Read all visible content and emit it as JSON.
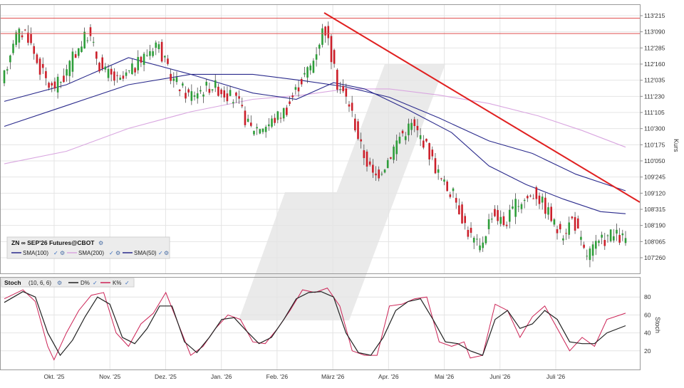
{
  "chart_data": {
    "type": "candlestick",
    "instrument_label": "ZN ∞ SEP'26 Futures@CBOT",
    "price_axis_label": "Kurs",
    "price_ticks": [
      "113'215",
      "113'090",
      "112'285",
      "112'160",
      "112'035",
      "111'230",
      "111'105",
      "110'300",
      "110'175",
      "110'050",
      "109'245",
      "109'120",
      "108'315",
      "108'190",
      "108'065",
      "107'260"
    ],
    "x_ticks": [
      "Okt. '25",
      "Nov. '25",
      "Dez. '25",
      "Jan. '26",
      "Feb. '26",
      "März '26",
      "Apr. '26",
      "Mai '26",
      "Juni '26",
      "Juli '26"
    ],
    "legend": [
      {
        "name": "SMA(100)",
        "color": "#2a2a8c"
      },
      {
        "name": "SMA(200)",
        "color": "#d9a6e0"
      },
      {
        "name": "SMA(50)",
        "color": "#2a2a8c"
      }
    ],
    "colors": {
      "up": "#2e9e3a",
      "down": "#cc1f2a",
      "trend": "#e02020",
      "level": "#e05050",
      "d_line": "#222222",
      "k_line": "#cc2255"
    },
    "levels": [
      113.65,
      113.28
    ],
    "trendline": [
      [
        0.0,
        113.8
      ],
      [
        1.0,
        108.92
      ]
    ],
    "price_range": [
      107.55,
      113.95
    ],
    "price_points": [
      {
        "t": 0.0,
        "p": 111.95
      },
      {
        "t": 0.02,
        "p": 113.2
      },
      {
        "t": 0.04,
        "p": 113.35
      },
      {
        "t": 0.06,
        "p": 112.5
      },
      {
        "t": 0.08,
        "p": 111.95
      },
      {
        "t": 0.1,
        "p": 112.2
      },
      {
        "t": 0.12,
        "p": 112.85
      },
      {
        "t": 0.14,
        "p": 113.3
      },
      {
        "t": 0.16,
        "p": 112.45
      },
      {
        "t": 0.19,
        "p": 112.1
      },
      {
        "t": 0.22,
        "p": 112.55
      },
      {
        "t": 0.25,
        "p": 113.1
      },
      {
        "t": 0.27,
        "p": 112.3
      },
      {
        "t": 0.3,
        "p": 111.8
      },
      {
        "t": 0.34,
        "p": 112.05
      },
      {
        "t": 0.38,
        "p": 111.65
      },
      {
        "t": 0.4,
        "p": 111.0
      },
      {
        "t": 0.43,
        "p": 111.1
      },
      {
        "t": 0.46,
        "p": 111.5
      },
      {
        "t": 0.48,
        "p": 112.1
      },
      {
        "t": 0.5,
        "p": 112.55
      },
      {
        "t": 0.52,
        "p": 113.5
      },
      {
        "t": 0.54,
        "p": 112.1
      },
      {
        "t": 0.56,
        "p": 111.6
      },
      {
        "t": 0.58,
        "p": 110.5
      },
      {
        "t": 0.6,
        "p": 109.8
      },
      {
        "t": 0.62,
        "p": 110.2
      },
      {
        "t": 0.64,
        "p": 110.8
      },
      {
        "t": 0.66,
        "p": 111.1
      },
      {
        "t": 0.68,
        "p": 110.7
      },
      {
        "t": 0.71,
        "p": 109.7
      },
      {
        "t": 0.73,
        "p": 109.35
      },
      {
        "t": 0.75,
        "p": 108.55
      },
      {
        "t": 0.77,
        "p": 108.1
      },
      {
        "t": 0.79,
        "p": 109.0
      },
      {
        "t": 0.81,
        "p": 108.7
      },
      {
        "t": 0.83,
        "p": 109.2
      },
      {
        "t": 0.86,
        "p": 109.45
      },
      {
        "t": 0.88,
        "p": 109.0
      },
      {
        "t": 0.9,
        "p": 108.4
      },
      {
        "t": 0.92,
        "p": 108.85
      },
      {
        "t": 0.94,
        "p": 107.95
      },
      {
        "t": 0.96,
        "p": 108.2
      },
      {
        "t": 0.98,
        "p": 108.45
      },
      {
        "t": 1.0,
        "p": 108.35
      }
    ],
    "sma50": [
      {
        "t": 0.0,
        "p": 111.65
      },
      {
        "t": 0.1,
        "p": 112.05
      },
      {
        "t": 0.2,
        "p": 112.7
      },
      {
        "t": 0.3,
        "p": 112.3
      },
      {
        "t": 0.4,
        "p": 111.85
      },
      {
        "t": 0.47,
        "p": 111.7
      },
      {
        "t": 0.53,
        "p": 112.1
      },
      {
        "t": 0.58,
        "p": 111.95
      },
      {
        "t": 0.65,
        "p": 111.45
      },
      {
        "t": 0.72,
        "p": 110.9
      },
      {
        "t": 0.78,
        "p": 110.1
      },
      {
        "t": 0.84,
        "p": 109.65
      },
      {
        "t": 0.9,
        "p": 109.3
      },
      {
        "t": 0.96,
        "p": 109.0
      },
      {
        "t": 1.0,
        "p": 108.95
      }
    ],
    "sma100": [
      {
        "t": 0.0,
        "p": 111.05
      },
      {
        "t": 0.1,
        "p": 111.55
      },
      {
        "t": 0.2,
        "p": 112.05
      },
      {
        "t": 0.3,
        "p": 112.3
      },
      {
        "t": 0.4,
        "p": 112.3
      },
      {
        "t": 0.48,
        "p": 112.15
      },
      {
        "t": 0.55,
        "p": 112.0
      },
      {
        "t": 0.62,
        "p": 111.75
      },
      {
        "t": 0.7,
        "p": 111.25
      },
      {
        "t": 0.78,
        "p": 110.7
      },
      {
        "t": 0.85,
        "p": 110.4
      },
      {
        "t": 0.92,
        "p": 109.9
      },
      {
        "t": 1.0,
        "p": 109.5
      }
    ],
    "sma200": [
      {
        "t": 0.0,
        "p": 110.15
      },
      {
        "t": 0.1,
        "p": 110.45
      },
      {
        "t": 0.2,
        "p": 111.0
      },
      {
        "t": 0.3,
        "p": 111.4
      },
      {
        "t": 0.4,
        "p": 111.7
      },
      {
        "t": 0.48,
        "p": 111.8
      },
      {
        "t": 0.55,
        "p": 111.95
      },
      {
        "t": 0.62,
        "p": 111.95
      },
      {
        "t": 0.7,
        "p": 111.8
      },
      {
        "t": 0.78,
        "p": 111.6
      },
      {
        "t": 0.86,
        "p": 111.3
      },
      {
        "t": 0.93,
        "p": 110.95
      },
      {
        "t": 1.0,
        "p": 110.55
      }
    ],
    "stoch": {
      "label": "Stoch",
      "params": "(10, 6, 6)",
      "d_label": "D%",
      "k_label": "K%",
      "axis_label": "Stoch",
      "ticks": [
        80,
        60,
        40,
        20
      ],
      "range": [
        0,
        100
      ],
      "k": [
        {
          "t": 0.0,
          "v": 78
        },
        {
          "t": 0.03,
          "v": 88
        },
        {
          "t": 0.05,
          "v": 75
        },
        {
          "t": 0.07,
          "v": 25
        },
        {
          "t": 0.08,
          "v": 10
        },
        {
          "t": 0.1,
          "v": 40
        },
        {
          "t": 0.12,
          "v": 65
        },
        {
          "t": 0.14,
          "v": 82
        },
        {
          "t": 0.16,
          "v": 85
        },
        {
          "t": 0.18,
          "v": 40
        },
        {
          "t": 0.2,
          "v": 25
        },
        {
          "t": 0.22,
          "v": 50
        },
        {
          "t": 0.24,
          "v": 62
        },
        {
          "t": 0.26,
          "v": 85
        },
        {
          "t": 0.28,
          "v": 50
        },
        {
          "t": 0.3,
          "v": 15
        },
        {
          "t": 0.32,
          "v": 25
        },
        {
          "t": 0.34,
          "v": 45
        },
        {
          "t": 0.36,
          "v": 60
        },
        {
          "t": 0.38,
          "v": 55
        },
        {
          "t": 0.4,
          "v": 30
        },
        {
          "t": 0.42,
          "v": 28
        },
        {
          "t": 0.44,
          "v": 45
        },
        {
          "t": 0.46,
          "v": 65
        },
        {
          "t": 0.48,
          "v": 88
        },
        {
          "t": 0.5,
          "v": 85
        },
        {
          "t": 0.52,
          "v": 90
        },
        {
          "t": 0.54,
          "v": 70
        },
        {
          "t": 0.56,
          "v": 20
        },
        {
          "t": 0.58,
          "v": 15
        },
        {
          "t": 0.6,
          "v": 15
        },
        {
          "t": 0.62,
          "v": 70
        },
        {
          "t": 0.64,
          "v": 72
        },
        {
          "t": 0.66,
          "v": 78
        },
        {
          "t": 0.68,
          "v": 80
        },
        {
          "t": 0.7,
          "v": 30
        },
        {
          "t": 0.72,
          "v": 25
        },
        {
          "t": 0.74,
          "v": 30
        },
        {
          "t": 0.75,
          "v": 12
        },
        {
          "t": 0.77,
          "v": 15
        },
        {
          "t": 0.79,
          "v": 72
        },
        {
          "t": 0.81,
          "v": 65
        },
        {
          "t": 0.83,
          "v": 35
        },
        {
          "t": 0.85,
          "v": 58
        },
        {
          "t": 0.87,
          "v": 70
        },
        {
          "t": 0.89,
          "v": 45
        },
        {
          "t": 0.91,
          "v": 20
        },
        {
          "t": 0.93,
          "v": 35
        },
        {
          "t": 0.95,
          "v": 25
        },
        {
          "t": 0.97,
          "v": 55
        },
        {
          "t": 1.0,
          "v": 62
        }
      ],
      "d": [
        {
          "t": 0.0,
          "v": 74
        },
        {
          "t": 0.03,
          "v": 86
        },
        {
          "t": 0.05,
          "v": 80
        },
        {
          "t": 0.07,
          "v": 40
        },
        {
          "t": 0.09,
          "v": 15
        },
        {
          "t": 0.11,
          "v": 32
        },
        {
          "t": 0.13,
          "v": 58
        },
        {
          "t": 0.15,
          "v": 80
        },
        {
          "t": 0.17,
          "v": 72
        },
        {
          "t": 0.19,
          "v": 35
        },
        {
          "t": 0.21,
          "v": 28
        },
        {
          "t": 0.23,
          "v": 45
        },
        {
          "t": 0.25,
          "v": 70
        },
        {
          "t": 0.27,
          "v": 70
        },
        {
          "t": 0.29,
          "v": 30
        },
        {
          "t": 0.31,
          "v": 18
        },
        {
          "t": 0.33,
          "v": 35
        },
        {
          "t": 0.35,
          "v": 55
        },
        {
          "t": 0.37,
          "v": 57
        },
        {
          "t": 0.39,
          "v": 42
        },
        {
          "t": 0.41,
          "v": 28
        },
        {
          "t": 0.43,
          "v": 35
        },
        {
          "t": 0.45,
          "v": 55
        },
        {
          "t": 0.47,
          "v": 78
        },
        {
          "t": 0.49,
          "v": 85
        },
        {
          "t": 0.51,
          "v": 86
        },
        {
          "t": 0.53,
          "v": 80
        },
        {
          "t": 0.55,
          "v": 40
        },
        {
          "t": 0.57,
          "v": 18
        },
        {
          "t": 0.59,
          "v": 15
        },
        {
          "t": 0.61,
          "v": 35
        },
        {
          "t": 0.63,
          "v": 65
        },
        {
          "t": 0.65,
          "v": 75
        },
        {
          "t": 0.67,
          "v": 78
        },
        {
          "t": 0.69,
          "v": 55
        },
        {
          "t": 0.71,
          "v": 30
        },
        {
          "t": 0.73,
          "v": 28
        },
        {
          "t": 0.75,
          "v": 20
        },
        {
          "t": 0.77,
          "v": 15
        },
        {
          "t": 0.79,
          "v": 55
        },
        {
          "t": 0.81,
          "v": 65
        },
        {
          "t": 0.83,
          "v": 45
        },
        {
          "t": 0.85,
          "v": 50
        },
        {
          "t": 0.87,
          "v": 65
        },
        {
          "t": 0.89,
          "v": 55
        },
        {
          "t": 0.91,
          "v": 30
        },
        {
          "t": 0.93,
          "v": 28
        },
        {
          "t": 0.95,
          "v": 28
        },
        {
          "t": 0.97,
          "v": 40
        },
        {
          "t": 1.0,
          "v": 48
        }
      ]
    }
  }
}
